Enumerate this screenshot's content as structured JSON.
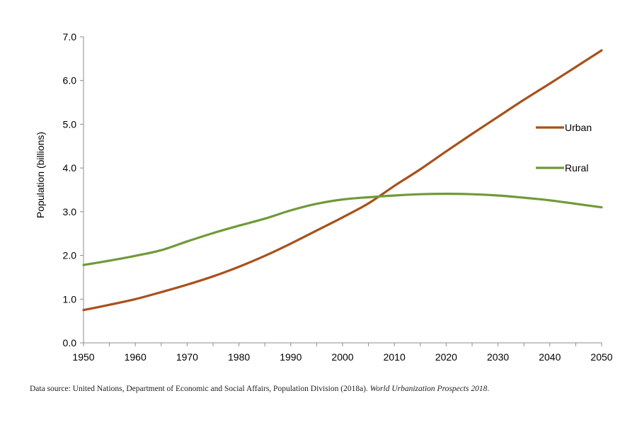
{
  "chart_data": {
    "type": "line",
    "title": "",
    "xlabel": "",
    "ylabel": "Population (billions)",
    "xlim": [
      1950,
      2050
    ],
    "ylim": [
      0,
      7
    ],
    "x_ticks": [
      "1950",
      "1960",
      "1970",
      "1980",
      "1990",
      "2000",
      "2010",
      "2020",
      "2030",
      "2040",
      "2050"
    ],
    "y_ticks": [
      "0.0",
      "1.0",
      "2.0",
      "3.0",
      "4.0",
      "5.0",
      "6.0",
      "7.0"
    ],
    "grid": false,
    "legend_position": "right",
    "x": [
      1950,
      1955,
      1960,
      1965,
      1970,
      1975,
      1980,
      1985,
      1990,
      1995,
      2000,
      2005,
      2010,
      2015,
      2020,
      2025,
      2030,
      2035,
      2040,
      2045,
      2050
    ],
    "series": [
      {
        "name": "Urban",
        "color": "#a9501b",
        "values": [
          0.75,
          0.87,
          1.0,
          1.16,
          1.33,
          1.52,
          1.74,
          1.99,
          2.27,
          2.57,
          2.87,
          3.19,
          3.59,
          3.97,
          4.38,
          4.78,
          5.17,
          5.56,
          5.93,
          6.31,
          6.69
        ]
      },
      {
        "name": "Rural",
        "color": "#6f9a38",
        "values": [
          1.78,
          1.88,
          1.99,
          2.12,
          2.32,
          2.51,
          2.68,
          2.84,
          3.03,
          3.18,
          3.28,
          3.33,
          3.37,
          3.4,
          3.41,
          3.4,
          3.37,
          3.32,
          3.26,
          3.18,
          3.1
        ]
      }
    ]
  },
  "source": {
    "prefix": "Data source: United Nations, Department of Economic and Social Affairs, Population Division (2018a). ",
    "italic": "World Urbanization Prospects 2018",
    "suffix": "."
  }
}
